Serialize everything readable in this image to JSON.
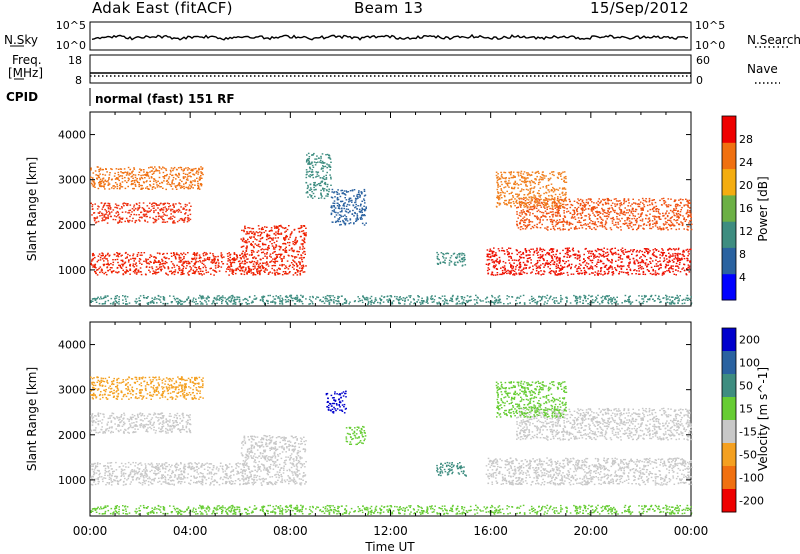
{
  "header": {
    "station": "Adak East (fitACF)",
    "beam": "Beam 13",
    "date": "15/Sep/2012"
  },
  "noise_panel": {
    "left_label": "N.Sky",
    "right_label": "N.Search",
    "tick_top": "10^5",
    "tick_bottom": "10^0"
  },
  "freq_panel": {
    "left_label_1": "Freq.",
    "left_label_2": "[MHz]",
    "right_label": "Nave",
    "left_ticks": [
      "18",
      "8"
    ],
    "right_ticks": [
      "60",
      "0"
    ]
  },
  "cpid": {
    "label": "CPID",
    "text": "normal (fast) 151 RF"
  },
  "chart_data": [
    {
      "type": "heatmap",
      "name": "power",
      "ylabel": "Slant Range [km]",
      "ylim": [
        200,
        4500
      ],
      "yticks": [
        1000,
        2000,
        3000,
        4000
      ],
      "xlim": [
        0,
        24
      ],
      "colorbar_label": "Power [dB]",
      "colorbar_ticks": [
        "4",
        "8",
        "12",
        "16",
        "20",
        "24",
        "28"
      ],
      "colorbar_colors": [
        "#0000ff",
        "#2a62a0",
        "#3e8d80",
        "#6cb045",
        "#f4ad10",
        "#f07010",
        "#ee0000"
      ],
      "scatter_bands": [
        {
          "t0": 0.0,
          "t1": 6.2,
          "r0": 900,
          "r1": 1400,
          "color": "#ee2000"
        },
        {
          "t0": 0.0,
          "t1": 4.0,
          "r0": 2050,
          "r1": 2500,
          "color": "#ee3010"
        },
        {
          "t0": 0.0,
          "t1": 4.5,
          "r0": 2800,
          "r1": 3300,
          "color": "#f07010"
        },
        {
          "t0": 6.0,
          "t1": 8.6,
          "r0": 900,
          "r1": 2000,
          "color": "#ee2000"
        },
        {
          "t0": 8.6,
          "t1": 9.6,
          "r0": 2600,
          "r1": 3600,
          "color": "#3e8d80"
        },
        {
          "t0": 9.6,
          "t1": 11.0,
          "r0": 2000,
          "r1": 2800,
          "color": "#2a62a0"
        },
        {
          "t0": 13.8,
          "t1": 15.0,
          "r0": 1100,
          "r1": 1400,
          "color": "#3e8d80"
        },
        {
          "t0": 15.8,
          "t1": 24.0,
          "r0": 900,
          "r1": 1500,
          "color": "#ee1000"
        },
        {
          "t0": 17.0,
          "t1": 24.0,
          "r0": 1900,
          "r1": 2600,
          "color": "#f05010"
        },
        {
          "t0": 16.2,
          "t1": 19.0,
          "r0": 2400,
          "r1": 3200,
          "color": "#f08020"
        },
        {
          "t0": 0.0,
          "t1": 24.0,
          "r0": 250,
          "r1": 450,
          "color": "#3e8d80"
        }
      ]
    },
    {
      "type": "heatmap",
      "name": "velocity",
      "ylabel": "Slant Range [km]",
      "ylim": [
        200,
        4500
      ],
      "yticks": [
        1000,
        2000,
        3000,
        4000
      ],
      "xlim": [
        0,
        24
      ],
      "xlabel": "Time UT",
      "xticks": [
        "00:00",
        "04:00",
        "08:00",
        "12:00",
        "16:00",
        "20:00",
        "00:00"
      ],
      "colorbar_label": "Velocity [m s^-1]",
      "colorbar_ticks": [
        "200",
        "100",
        "50",
        "15",
        "-15",
        "-50",
        "-100",
        "-200"
      ],
      "colorbar_colors": [
        "#0000cc",
        "#2a62a0",
        "#3e8d80",
        "#66cc33",
        "#c8c8c8",
        "#f4a020",
        "#f07010",
        "#ee0000"
      ],
      "scatter_bands": [
        {
          "t0": 0.0,
          "t1": 6.2,
          "r0": 900,
          "r1": 1400,
          "color": "#c8c8c8"
        },
        {
          "t0": 0.0,
          "t1": 4.0,
          "r0": 2050,
          "r1": 2500,
          "color": "#c8c8c8"
        },
        {
          "t0": 0.0,
          "t1": 4.5,
          "r0": 2800,
          "r1": 3300,
          "color": "#f4a020"
        },
        {
          "t0": 6.0,
          "t1": 8.6,
          "r0": 900,
          "r1": 2000,
          "color": "#c8c8c8"
        },
        {
          "t0": 9.4,
          "t1": 10.2,
          "r0": 2500,
          "r1": 3000,
          "color": "#0000cc"
        },
        {
          "t0": 10.2,
          "t1": 11.0,
          "r0": 1800,
          "r1": 2200,
          "color": "#66cc33"
        },
        {
          "t0": 13.8,
          "t1": 15.0,
          "r0": 1100,
          "r1": 1400,
          "color": "#3e8d80"
        },
        {
          "t0": 15.8,
          "t1": 24.0,
          "r0": 900,
          "r1": 1500,
          "color": "#c8c8c8"
        },
        {
          "t0": 17.0,
          "t1": 24.0,
          "r0": 1900,
          "r1": 2600,
          "color": "#c8c8c8"
        },
        {
          "t0": 16.2,
          "t1": 19.0,
          "r0": 2400,
          "r1": 3200,
          "color": "#66cc33"
        },
        {
          "t0": 0.0,
          "t1": 24.0,
          "r0": 250,
          "r1": 450,
          "color": "#66cc33"
        }
      ]
    }
  ]
}
